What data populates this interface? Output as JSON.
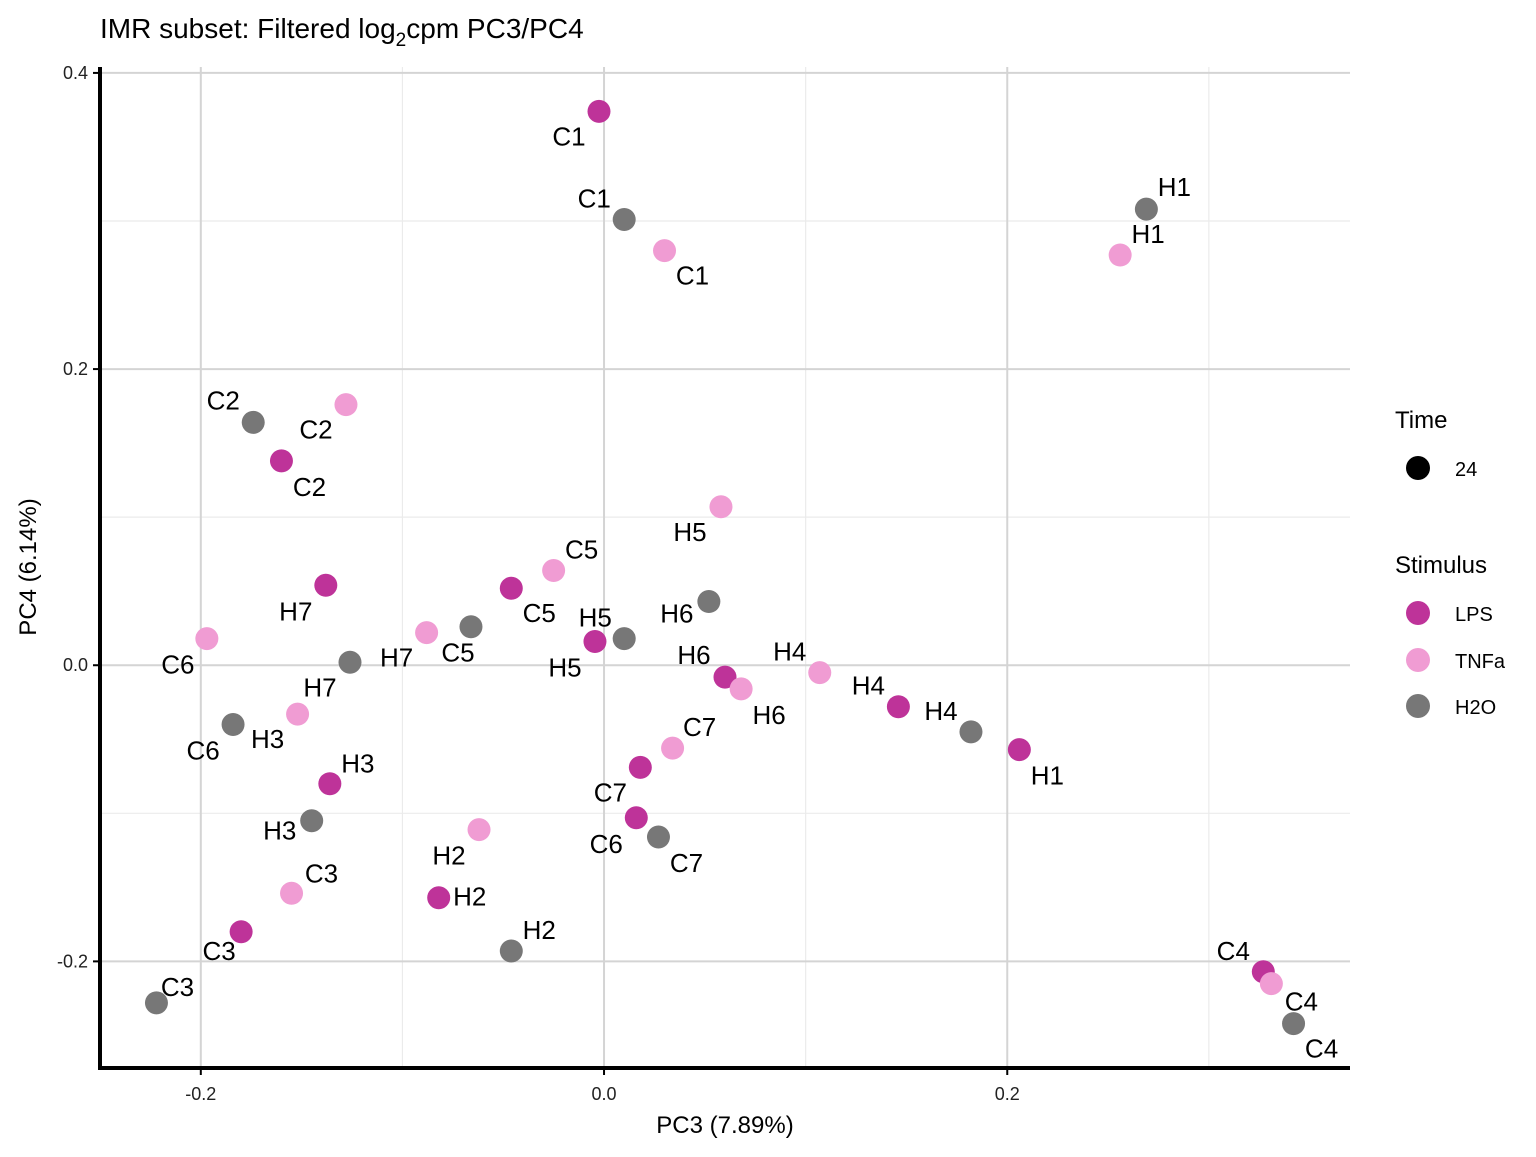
{
  "chart_data": {
    "type": "scatter",
    "title": {
      "prefix": "IMR subset: Filtered log",
      "sub": "2",
      "suffix": "cpm PC3/PC4"
    },
    "xlabel": "PC3 (7.89%)",
    "ylabel": "PC4 (6.14%)",
    "xlim": [
      -0.25,
      0.37
    ],
    "ylim": [
      -0.272,
      0.404
    ],
    "xticks": [
      -0.2,
      0.0,
      0.2
    ],
    "xtick_labels": [
      "-0.2",
      "0.0",
      "0.2"
    ],
    "yticks": [
      -0.2,
      0.0,
      0.2,
      0.4
    ],
    "ytick_labels": [
      "-0.2",
      "0.0",
      "0.2",
      "0.4"
    ],
    "x_minor": [
      -0.1,
      0.1,
      0.3
    ],
    "y_minor": [
      -0.1,
      0.1,
      0.3
    ],
    "grid": true,
    "legend_placement": "right",
    "legend": {
      "time_title": "Time",
      "time_items": [
        {
          "label": "24",
          "color": "#000000"
        }
      ],
      "stimulus_title": "Stimulus",
      "stimulus_items": [
        {
          "label": "LPS",
          "color": "#BE3399"
        },
        {
          "label": "TNFa",
          "color": "#F09CD3"
        },
        {
          "label": "H2O",
          "color": "#777777"
        }
      ]
    },
    "series": [
      {
        "name": "LPS",
        "color": "#BE3399",
        "points": [
          {
            "label": "C1",
            "x": -0.0025,
            "y": 0.374
          },
          {
            "label": "C2",
            "x": -0.16,
            "y": 0.138
          },
          {
            "label": "H7",
            "x": -0.138,
            "y": 0.054
          },
          {
            "label": "C5",
            "x": -0.046,
            "y": 0.052
          },
          {
            "label": "H5",
            "x": -0.0045,
            "y": 0.016
          },
          {
            "label": "H6",
            "x": 0.06,
            "y": -0.008
          },
          {
            "label": "H4",
            "x": 0.146,
            "y": -0.028
          },
          {
            "label": "H1",
            "x": 0.206,
            "y": -0.057
          },
          {
            "label": "H3",
            "x": -0.136,
            "y": -0.08
          },
          {
            "label": "C7",
            "x": 0.018,
            "y": -0.069
          },
          {
            "label": "C6",
            "x": 0.016,
            "y": -0.103
          },
          {
            "label": "H2",
            "x": -0.082,
            "y": -0.157
          },
          {
            "label": "C3",
            "x": -0.18,
            "y": -0.18
          },
          {
            "label": "C4",
            "x": 0.327,
            "y": -0.207
          }
        ]
      },
      {
        "name": "TNFa",
        "color": "#F09CD3",
        "points": [
          {
            "label": "C1",
            "x": 0.03,
            "y": 0.28
          },
          {
            "label": "H1",
            "x": 0.256,
            "y": 0.277
          },
          {
            "label": "C2",
            "x": -0.128,
            "y": 0.176
          },
          {
            "label": "H5",
            "x": 0.058,
            "y": 0.107
          },
          {
            "label": "C5",
            "x": -0.025,
            "y": 0.064
          },
          {
            "label": "H7",
            "x": -0.088,
            "y": 0.022
          },
          {
            "label": "C6",
            "x": -0.197,
            "y": 0.018
          },
          {
            "label": "H4",
            "x": 0.107,
            "y": -0.005
          },
          {
            "label": "H6",
            "x": 0.068,
            "y": -0.016
          },
          {
            "label": "H3",
            "x": -0.152,
            "y": -0.033
          },
          {
            "label": "C7",
            "x": 0.034,
            "y": -0.056
          },
          {
            "label": "H2",
            "x": -0.062,
            "y": -0.111
          },
          {
            "label": "C3",
            "x": -0.155,
            "y": -0.154
          },
          {
            "label": "C4",
            "x": 0.331,
            "y": -0.215
          }
        ]
      },
      {
        "name": "H2O",
        "color": "#777777",
        "points": [
          {
            "label": "C1",
            "x": 0.01,
            "y": 0.301
          },
          {
            "label": "H1",
            "x": 0.269,
            "y": 0.308
          },
          {
            "label": "C2",
            "x": -0.174,
            "y": 0.164
          },
          {
            "label": "H6",
            "x": 0.052,
            "y": 0.043
          },
          {
            "label": "C5",
            "x": -0.066,
            "y": 0.026
          },
          {
            "label": "H5",
            "x": 0.01,
            "y": 0.018
          },
          {
            "label": "H7",
            "x": -0.126,
            "y": 0.002
          },
          {
            "label": "C6",
            "x": -0.184,
            "y": -0.04
          },
          {
            "label": "H4",
            "x": 0.182,
            "y": -0.045
          },
          {
            "label": "H3",
            "x": -0.145,
            "y": -0.105
          },
          {
            "label": "C7",
            "x": 0.027,
            "y": -0.116
          },
          {
            "label": "H2",
            "x": -0.046,
            "y": -0.193
          },
          {
            "label": "C3",
            "x": -0.222,
            "y": -0.228
          },
          {
            "label": "C4",
            "x": 0.342,
            "y": -0.242
          }
        ]
      }
    ]
  }
}
